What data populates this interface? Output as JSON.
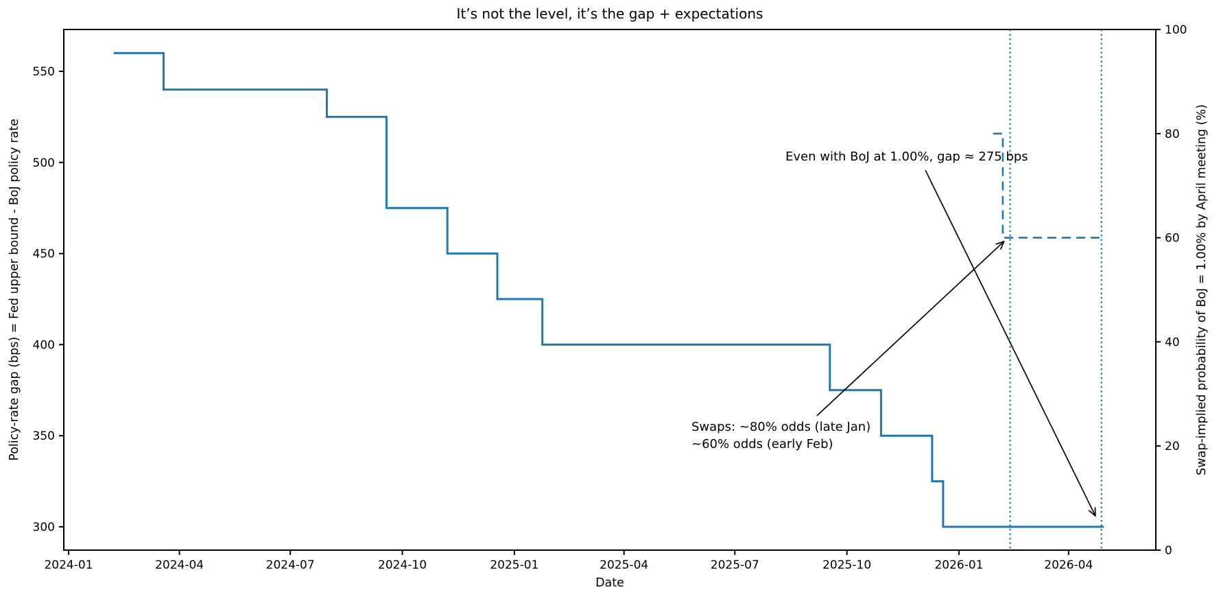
{
  "chart_data": {
    "type": "line",
    "title": "It’s not the level, it’s the gap + expectations",
    "xlabel": "Date",
    "ylabel_left": "Policy-rate gap (bps) = Fed upper bound - BoJ policy rate",
    "ylabel_right": "Swap-implied probability of BoJ = 1.00% by April meeting (%)",
    "x_tick_labels": [
      "2024-01",
      "2024-04",
      "2024-07",
      "2024-10",
      "2025-01",
      "2025-04",
      "2025-07",
      "2025-10",
      "2026-01",
      "2026-04"
    ],
    "y_ticks_left": [
      550,
      500,
      450,
      400,
      350,
      300
    ],
    "y_ticks_right": [
      100,
      80,
      60,
      40,
      20,
      0
    ],
    "ylim_left": [
      287,
      573
    ],
    "ylim_right": [
      0,
      100
    ],
    "grid": false,
    "legend": "none",
    "accent_color": "#1f77b4",
    "series": [
      {
        "name": "policy_rate_gap_bps",
        "axis": "left",
        "style": "solid-step",
        "color": "#1f77b4",
        "points": [
          [
            "2024-02-07",
            560
          ],
          [
            "2024-03-19",
            540
          ],
          [
            "2024-07-31",
            525
          ],
          [
            "2024-09-18",
            475
          ],
          [
            "2024-11-07",
            450
          ],
          [
            "2024-12-18",
            425
          ],
          [
            "2025-01-24",
            400
          ],
          [
            "2025-09-17",
            375
          ],
          [
            "2025-10-29",
            350
          ],
          [
            "2025-12-10",
            325
          ],
          [
            "2025-12-19",
            300
          ]
        ],
        "end_date": "2026-04-30"
      },
      {
        "name": "swap_implied_prob_pct",
        "axis": "right",
        "style": "dashed-step",
        "color": "#1f77b4",
        "points": [
          [
            "2026-01-29",
            80
          ],
          [
            "2026-02-06",
            60
          ]
        ],
        "end_date": "2026-04-28"
      }
    ],
    "vlines": [
      {
        "date": "2026-02-12",
        "style": "dotted",
        "color": "#1f77b4"
      },
      {
        "date": "2026-04-28",
        "style": "dotted",
        "color": "#1f77b4"
      }
    ],
    "annotations": [
      {
        "text": "Even with BoJ at 1.00%, gap ≈ 275 bps",
        "arrow_target": {
          "date": "2026-04-23",
          "value": 306,
          "axis": "left"
        }
      },
      {
        "lines": [
          "Swaps: ~80% odds (late Jan)",
          "~60% odds (early Feb)"
        ],
        "arrow_target": {
          "date": "2026-02-07",
          "value": 59.3,
          "axis": "right"
        }
      }
    ]
  }
}
